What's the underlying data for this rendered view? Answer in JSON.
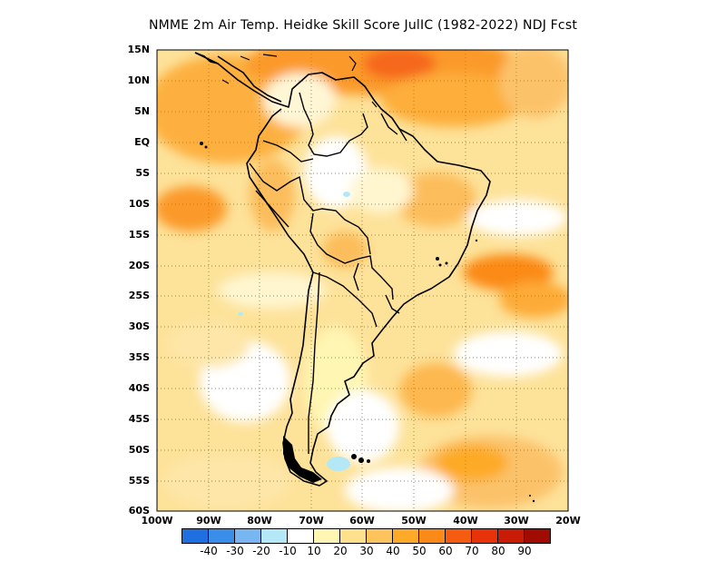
{
  "title": "NMME  2m Air Temp. Heidke Skill Score JulIC (1982-2022) NDJ Fcst",
  "lat_labels": [
    "15N",
    "10N",
    "5N",
    "EQ",
    "5S",
    "10S",
    "15S",
    "20S",
    "25S",
    "30S",
    "35S",
    "40S",
    "45S",
    "50S",
    "55S",
    "60S"
  ],
  "lon_labels": [
    "100W",
    "90W",
    "80W",
    "70W",
    "60W",
    "50W",
    "40W",
    "30W",
    "20W"
  ],
  "colorbar": {
    "colors": [
      "#1f6fe0",
      "#3a8eea",
      "#78b6f2",
      "#b4e8f6",
      "#ffffff",
      "#fff6b4",
      "#ffe08c",
      "#fdc35c",
      "#fdaa28",
      "#fb8a18",
      "#f65c10",
      "#e8320a",
      "#c81c06",
      "#a00c02"
    ],
    "labels": [
      "-40",
      "-30",
      "-20",
      "-10",
      "10",
      "20",
      "30",
      "40",
      "50",
      "60",
      "70",
      "80",
      "90"
    ]
  }
}
